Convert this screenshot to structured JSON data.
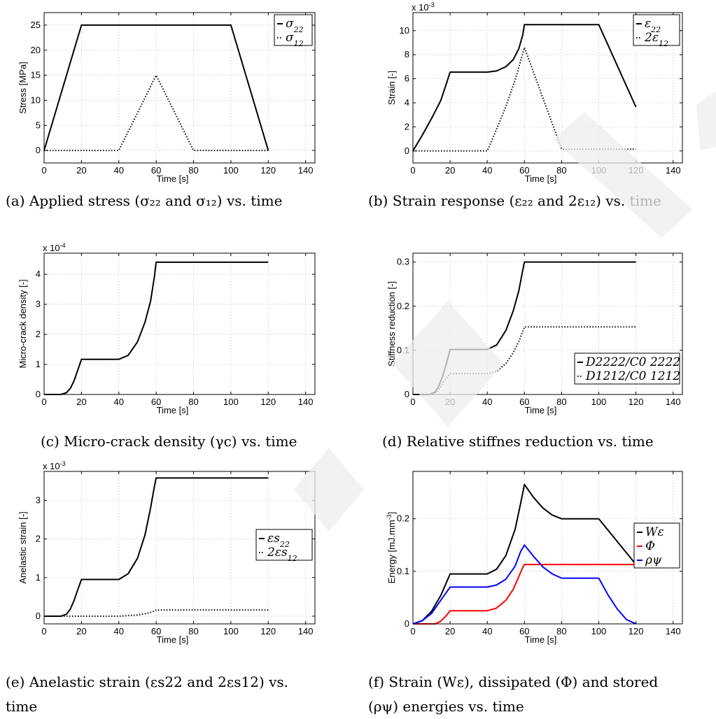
{
  "captions": [
    "(a) Applied stress (σ₂₂ and σ₁₂) vs. time",
    "(b) Strain response (ε₂₂ and 2ε₁₂) vs. time",
    "(c) Micro-crack density (γc) vs. time",
    "(d) Relative stiffnes reduction vs. time",
    "(e) Anelastic strain (εs22 and 2εs12) vs.",
    "time",
    "(f) Strain (Wε), dissipated (Φ) and stored",
    "(ρψ) energies vs. time"
  ],
  "chart_data": [
    {
      "id": "a",
      "type": "line",
      "xlabel": "Time [s]",
      "ylabel": "Stress [MPa]",
      "exponent": "",
      "xlim": [
        0,
        145
      ],
      "ylim": [
        -2.5,
        27.5
      ],
      "xticks": [
        0,
        20,
        40,
        60,
        80,
        100,
        120,
        140
      ],
      "yticks": [
        0,
        5,
        10,
        15,
        20,
        25
      ],
      "ytick_labels": [
        "0",
        "5",
        "10",
        "15",
        "20",
        "25"
      ],
      "grid": true,
      "legend_position": "top-right",
      "series": [
        {
          "name": "σ22",
          "color": "#000000",
          "dash": "solid",
          "x": [
            0,
            20,
            100,
            120
          ],
          "y": [
            0,
            25,
            25,
            0
          ]
        },
        {
          "name": "σ12",
          "color": "#000000",
          "dash": "dotted",
          "x": [
            0,
            40,
            60,
            80,
            120
          ],
          "y": [
            0,
            0,
            15,
            0,
            0
          ]
        }
      ]
    },
    {
      "id": "b",
      "type": "line",
      "xlabel": "Time [s]",
      "ylabel": "Strain [-]",
      "exponent": "x 10^-3",
      "xlim": [
        0,
        145
      ],
      "ylim": [
        -1,
        11.5
      ],
      "xticks": [
        0,
        20,
        40,
        60,
        80,
        100,
        120,
        140
      ],
      "yticks": [
        0,
        2,
        4,
        6,
        8,
        10
      ],
      "ytick_labels": [
        "0",
        "2",
        "4",
        "6",
        "8",
        "10"
      ],
      "grid": true,
      "legend_position": "top-right",
      "series": [
        {
          "name": "ε22",
          "color": "#000000",
          "dash": "solid",
          "x": [
            0,
            5,
            10,
            15,
            18,
            20,
            40,
            45,
            50,
            54,
            57,
            59,
            60,
            100,
            120
          ],
          "y": [
            0,
            1.3,
            2.7,
            4.2,
            5.6,
            6.55,
            6.55,
            6.65,
            7.0,
            7.6,
            8.5,
            9.6,
            10.5,
            10.5,
            3.65
          ]
        },
        {
          "name": "2ε12",
          "color": "#000000",
          "dash": "dotted",
          "x": [
            0,
            40,
            45,
            50,
            55,
            58,
            60,
            80,
            120
          ],
          "y": [
            0,
            0,
            1.8,
            3.7,
            5.9,
            7.5,
            8.6,
            0.15,
            0.15
          ]
        }
      ]
    },
    {
      "id": "c",
      "type": "line",
      "xlabel": "Time [s]",
      "ylabel": "Micro-crack density [-]",
      "exponent": "x 10^-4",
      "xlim": [
        0,
        145
      ],
      "ylim": [
        0,
        4.7
      ],
      "xticks": [
        0,
        20,
        40,
        60,
        80,
        100,
        120,
        140
      ],
      "yticks": [
        0,
        1,
        2,
        3,
        4
      ],
      "ytick_labels": [
        "0",
        "1",
        "2",
        "3",
        "4"
      ],
      "grid": true,
      "legend_position": "",
      "series": [
        {
          "name": "",
          "color": "#000000",
          "dash": "solid",
          "x": [
            0,
            9,
            12,
            14,
            16,
            18,
            20,
            40,
            45,
            50,
            54,
            57,
            59,
            60,
            120
          ],
          "y": [
            0,
            0,
            0.06,
            0.2,
            0.45,
            0.8,
            1.17,
            1.17,
            1.3,
            1.75,
            2.4,
            3.1,
            3.9,
            4.4,
            4.4
          ]
        }
      ]
    },
    {
      "id": "d",
      "type": "line",
      "xlabel": "Time [s]",
      "ylabel": "Stiffness reduction [-]",
      "exponent": "",
      "xlim": [
        0,
        145
      ],
      "ylim": [
        0,
        0.32
      ],
      "xticks": [
        0,
        20,
        40,
        60,
        80,
        100,
        120,
        140
      ],
      "yticks": [
        0,
        0.1,
        0.2,
        0.3
      ],
      "ytick_labels": [
        "0",
        "0.1",
        "0.2",
        "0.3"
      ],
      "grid": true,
      "legend_position": "bottom-right",
      "series": [
        {
          "name": "D2222/C0 2222",
          "color": "#000000",
          "dash": "solid",
          "x": [
            0,
            9,
            12,
            14,
            16,
            18,
            20,
            40,
            45,
            50,
            54,
            57,
            59,
            60,
            120
          ],
          "y": [
            0,
            0,
            0.006,
            0.02,
            0.042,
            0.07,
            0.102,
            0.102,
            0.112,
            0.145,
            0.19,
            0.235,
            0.28,
            0.3,
            0.3
          ]
        },
        {
          "name": "D1212/C0 1212",
          "color": "#000000",
          "dash": "dotted",
          "x": [
            0,
            11,
            13,
            15,
            17,
            20,
            40,
            45,
            50,
            54,
            57,
            59,
            60,
            120
          ],
          "y": [
            0,
            0,
            0.006,
            0.018,
            0.032,
            0.047,
            0.047,
            0.052,
            0.07,
            0.095,
            0.12,
            0.142,
            0.153,
            0.153
          ]
        }
      ]
    },
    {
      "id": "e",
      "type": "line",
      "xlabel": "Time [s]",
      "ylabel": "Anelastic strain [-]",
      "exponent": "x 10^-3",
      "xlim": [
        0,
        145
      ],
      "ylim": [
        -0.2,
        3.75
      ],
      "xticks": [
        0,
        20,
        40,
        60,
        80,
        100,
        120,
        140
      ],
      "yticks": [
        0,
        1,
        2,
        3
      ],
      "ytick_labels": [
        "0",
        "1",
        "2",
        "3"
      ],
      "grid": true,
      "legend_position": "right",
      "series": [
        {
          "name": "εs22",
          "color": "#000000",
          "dash": "solid",
          "x": [
            0,
            9,
            12,
            14,
            16,
            18,
            20,
            40,
            45,
            50,
            54,
            57,
            59,
            60,
            120
          ],
          "y": [
            0,
            0,
            0.05,
            0.18,
            0.4,
            0.68,
            0.95,
            0.95,
            1.1,
            1.5,
            2.1,
            2.8,
            3.35,
            3.58,
            3.58
          ]
        },
        {
          "name": "2εs12",
          "color": "#000000",
          "dash": "dotted",
          "x": [
            0,
            40,
            50,
            55,
            58,
            60,
            120
          ],
          "y": [
            0,
            0,
            0.03,
            0.07,
            0.11,
            0.16,
            0.16
          ]
        }
      ]
    },
    {
      "id": "f",
      "type": "line",
      "xlabel": "Time [s]",
      "ylabel": "Energy [mJ.mm^-3]",
      "exponent": "",
      "xlim": [
        0,
        145
      ],
      "ylim": [
        0,
        0.29
      ],
      "xticks": [
        0,
        20,
        40,
        60,
        80,
        100,
        120,
        140
      ],
      "yticks": [
        0,
        0.1,
        0.2
      ],
      "ytick_labels": [
        "0",
        "0.1",
        "0.2"
      ],
      "grid": true,
      "legend_position": "right",
      "series": [
        {
          "name": "Wε",
          "color": "#000000",
          "dash": "solid",
          "x": [
            0,
            5,
            10,
            15,
            20,
            40,
            45,
            50,
            55,
            58,
            60,
            65,
            70,
            75,
            80,
            100,
            120
          ],
          "y": [
            0,
            0.006,
            0.024,
            0.054,
            0.095,
            0.095,
            0.104,
            0.13,
            0.18,
            0.23,
            0.265,
            0.24,
            0.22,
            0.207,
            0.2,
            0.2,
            0.113
          ]
        },
        {
          "name": "Φ",
          "color": "#ff0000",
          "dash": "solid",
          "x": [
            0,
            12,
            15,
            18,
            20,
            40,
            45,
            50,
            54,
            57,
            59,
            60,
            120
          ],
          "y": [
            0,
            0,
            0.005,
            0.016,
            0.025,
            0.025,
            0.03,
            0.045,
            0.066,
            0.09,
            0.107,
            0.113,
            0.113
          ]
        },
        {
          "name": "ρψ",
          "color": "#0000ff",
          "dash": "solid",
          "x": [
            0,
            5,
            10,
            15,
            20,
            40,
            45,
            50,
            55,
            58,
            60,
            65,
            70,
            75,
            80,
            100,
            105,
            110,
            115,
            120
          ],
          "y": [
            0,
            0.006,
            0.02,
            0.045,
            0.07,
            0.07,
            0.074,
            0.085,
            0.11,
            0.138,
            0.15,
            0.128,
            0.108,
            0.095,
            0.087,
            0.087,
            0.055,
            0.028,
            0.008,
            0
          ]
        }
      ]
    }
  ]
}
